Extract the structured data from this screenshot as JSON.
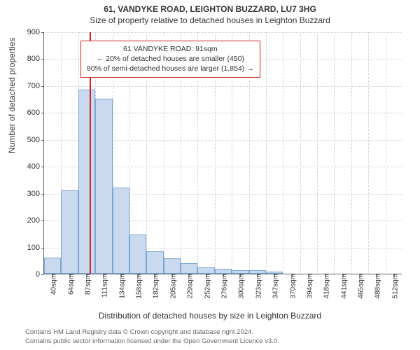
{
  "titles": {
    "main": "61, VANDYKE ROAD, LEIGHTON BUZZARD, LU7 3HG",
    "sub": "Size of property relative to detached houses in Leighton Buzzard"
  },
  "axes": {
    "ylabel": "Number of detached properties",
    "xlabel": "Distribution of detached houses by size in Leighton Buzzard",
    "ylim": [
      0,
      900
    ],
    "ytick_step": 100,
    "xtick_labels": [
      "40sqm",
      "64sqm",
      "87sqm",
      "111sqm",
      "134sqm",
      "158sqm",
      "182sqm",
      "205sqm",
      "229sqm",
      "252sqm",
      "276sqm",
      "300sqm",
      "323sqm",
      "347sqm",
      "370sqm",
      "394sqm",
      "418sqm",
      "441sqm",
      "465sqm",
      "488sqm",
      "512sqm"
    ]
  },
  "histogram": {
    "type": "histogram",
    "bar_fill": "#c9daf0",
    "bar_border": "#7ba4d4",
    "values": [
      60,
      310,
      685,
      650,
      320,
      145,
      82,
      58,
      38,
      24,
      18,
      14,
      12,
      8,
      0,
      0,
      0,
      0,
      0,
      0,
      0
    ]
  },
  "marker": {
    "color": "#d21f1f",
    "position_sqm": 91,
    "callout": {
      "line1": "61 VANDYKE ROAD: 91sqm",
      "line2": "← 20% of detached houses are smaller (450)",
      "line3": "80% of semi-detached houses are larger (1,854) →"
    }
  },
  "footnotes": {
    "line1": "Contains HM Land Registry data © Crown copyright and database right 2024.",
    "line2": "Contains public sector information licensed under the Open Government Licence v3.0."
  },
  "style": {
    "background_color": "#ffffff",
    "grid_color": "#cccccc",
    "axis_color": "#666666",
    "title_fontsize": 12,
    "label_fontsize": 12,
    "tick_fontsize": 11
  }
}
